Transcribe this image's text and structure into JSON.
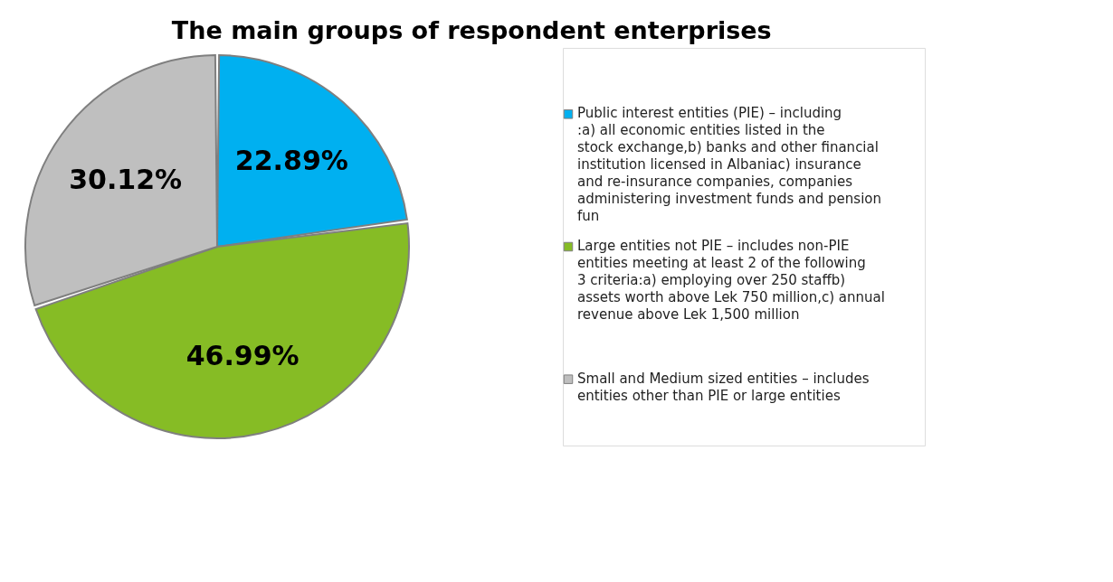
{
  "chart_data": {
    "type": "pie",
    "title": "The main groups of respondent enterprises",
    "categories": [
      "Public interest entities (PIE) – including :a) all economic entities listed in the stock exchange,b) banks and other financial institution licensed in Albaniac) insurance and re-insurance companies, companies administering investment funds and pension fun",
      "Large entities not PIE – includes non-PIE entities meeting at least 2 of the following 3 criteria:a) employing over 250 staffb) assets worth above Lek 750 million,c) annual revenue above Lek 1,500 million",
      "Small and Medium sized entities – includes entities other than PIE or large entities"
    ],
    "values": [
      22.89,
      46.99,
      30.12
    ],
    "colors": [
      "#00b0f0",
      "#86bc25",
      "#bfbfbf"
    ],
    "value_labels": [
      "22.89%",
      "46.99%",
      "30.12%"
    ],
    "legend": "right"
  }
}
